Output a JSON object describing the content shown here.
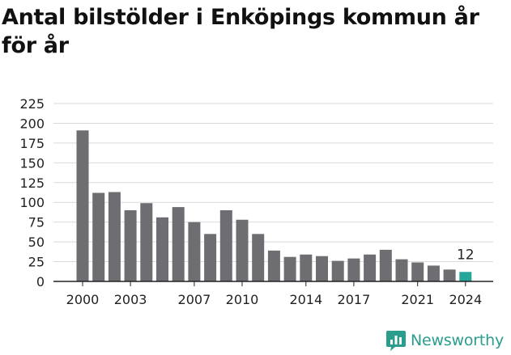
{
  "title": "Antal bilstölder i Enköpings kommun år för år",
  "logo": {
    "text": "Newsworthy",
    "icon": "newsworthy-chart-icon"
  },
  "colors": {
    "bar": "#6e6d72",
    "highlight": "#26a69a",
    "grid": "#d9d9d9",
    "axis": "#222222",
    "text": "#222222",
    "brand": "#2a9d8f"
  },
  "chart_data": {
    "type": "bar",
    "title": "Antal bilstölder i Enköpings kommun år för år",
    "xlabel": "",
    "ylabel": "",
    "categories": [
      "2000",
      "2001",
      "2002",
      "2003",
      "2004",
      "2005",
      "2006",
      "2007",
      "2008",
      "2009",
      "2010",
      "2011",
      "2012",
      "2013",
      "2014",
      "2015",
      "2016",
      "2017",
      "2018",
      "2019",
      "2020",
      "2021",
      "2022",
      "2023",
      "2024"
    ],
    "values": [
      191,
      112,
      113,
      90,
      99,
      81,
      94,
      75,
      60,
      90,
      78,
      60,
      39,
      31,
      34,
      32,
      26,
      29,
      34,
      40,
      28,
      24,
      20,
      15,
      12
    ],
    "ylim": [
      0,
      225
    ],
    "yticks": [
      0,
      25,
      50,
      75,
      100,
      125,
      150,
      175,
      200,
      225
    ],
    "xtick_labels": [
      "2000",
      "2003",
      "2007",
      "2010",
      "2014",
      "2017",
      "2021",
      "2024"
    ],
    "highlight": {
      "category": "2024",
      "label": "12"
    },
    "grid": true,
    "legend": "none"
  }
}
